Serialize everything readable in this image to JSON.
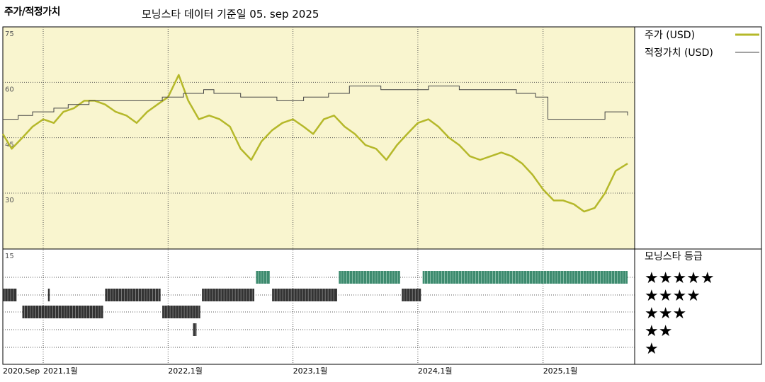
{
  "chart_data": {
    "type": "line",
    "title": "주가/적정가치",
    "subtitle": "모닝스타 데이터 기준일 05. sep 2025",
    "x_ticks": [
      "2020,Sep",
      "2021,1월",
      "2022,1월",
      "2023,1월",
      "2024,1월",
      "2025,1월"
    ],
    "x_range": [
      "2020-09",
      "2025-09"
    ],
    "ylim": [
      15,
      75
    ],
    "y_ticks": [
      75,
      60,
      45,
      30
    ],
    "grid": true,
    "legend_position": "right",
    "series": [
      {
        "name": "주가 (USD)",
        "color": "#b5b82a",
        "x": [
          "2020-09-05",
          "2020-10-01",
          "2020-11-01",
          "2020-12-01",
          "2021-01-01",
          "2021-02-01",
          "2021-03-01",
          "2021-04-01",
          "2021-05-01",
          "2021-06-01",
          "2021-07-01",
          "2021-08-01",
          "2021-09-01",
          "2021-10-01",
          "2021-11-01",
          "2021-12-01",
          "2022-01-01",
          "2022-02-01",
          "2022-03-01",
          "2022-04-01",
          "2022-05-01",
          "2022-06-01",
          "2022-07-01",
          "2022-08-01",
          "2022-09-01",
          "2022-10-01",
          "2022-11-01",
          "2022-12-01",
          "2023-01-01",
          "2023-02-01",
          "2023-03-01",
          "2023-04-01",
          "2023-05-01",
          "2023-06-01",
          "2023-07-01",
          "2023-08-01",
          "2023-09-01",
          "2023-10-01",
          "2023-11-01",
          "2023-12-01",
          "2024-01-01",
          "2024-02-01",
          "2024-03-01",
          "2024-04-01",
          "2024-05-01",
          "2024-06-01",
          "2024-07-01",
          "2024-08-01",
          "2024-09-01",
          "2024-10-01",
          "2024-11-01",
          "2024-12-01",
          "2025-01-01",
          "2025-02-01",
          "2025-03-01",
          "2025-04-01",
          "2025-05-01",
          "2025-06-01",
          "2025-07-01",
          "2025-08-01",
          "2025-09-05"
        ],
        "values": [
          46,
          42,
          45,
          48,
          50,
          49,
          52,
          53,
          55,
          55,
          54,
          52,
          51,
          49,
          52,
          54,
          56,
          62,
          55,
          50,
          51,
          50,
          48,
          42,
          39,
          44,
          47,
          49,
          50,
          48,
          46,
          50,
          51,
          48,
          46,
          43,
          42,
          39,
          43,
          46,
          49,
          50,
          48,
          45,
          43,
          40,
          39,
          40,
          41,
          40,
          38,
          35,
          31,
          28,
          28,
          27,
          25,
          26,
          30,
          36,
          38
        ]
      },
      {
        "name": "적정가치 (USD)",
        "color": "#444444",
        "x": [
          "2020-09-05",
          "2020-10-20",
          "2020-12-01",
          "2021-02-01",
          "2021-03-15",
          "2021-05-15",
          "2021-12-15",
          "2022-02-15",
          "2022-04-15",
          "2022-05-15",
          "2022-08-01",
          "2022-11-15",
          "2023-02-01",
          "2023-04-15",
          "2023-06-15",
          "2023-09-15",
          "2023-12-15",
          "2024-02-01",
          "2024-05-01",
          "2024-10-15",
          "2024-12-10",
          "2025-01-15",
          "2025-06-15",
          "2025-07-01",
          "2025-09-05"
        ],
        "values": [
          50,
          51,
          52,
          53,
          54,
          55,
          56,
          57,
          58,
          57,
          56,
          55,
          56,
          57,
          59,
          58,
          58,
          59,
          58,
          57,
          56,
          50,
          50,
          52,
          51
        ]
      }
    ]
  },
  "rating_chart": {
    "title": "모닝스타 등급",
    "y_label": "15",
    "star_levels": [
      "★★★★★",
      "★★★★",
      "★★★",
      "★★",
      "★"
    ],
    "ratings": [
      {
        "start": "2020-09-05",
        "end": "2020-10-15",
        "stars": 4
      },
      {
        "start": "2020-11-01",
        "end": "2021-06-25",
        "stars": 3
      },
      {
        "start": "2021-01-15",
        "end": "2021-01-20",
        "stars": 4
      },
      {
        "start": "2021-07-01",
        "end": "2021-12-10",
        "stars": 4
      },
      {
        "start": "2021-12-15",
        "end": "2022-04-05",
        "stars": 3
      },
      {
        "start": "2022-03-15",
        "end": "2022-03-25",
        "stars": 2
      },
      {
        "start": "2022-04-10",
        "end": "2022-09-10",
        "stars": 4
      },
      {
        "start": "2022-09-15",
        "end": "2022-10-25",
        "stars": 5
      },
      {
        "start": "2022-11-01",
        "end": "2023-05-10",
        "stars": 4
      },
      {
        "start": "2023-05-15",
        "end": "2023-11-10",
        "stars": 5
      },
      {
        "start": "2023-11-15",
        "end": "2024-01-10",
        "stars": 4
      },
      {
        "start": "2024-01-15",
        "end": "2025-09-05",
        "stars": 5
      }
    ]
  }
}
